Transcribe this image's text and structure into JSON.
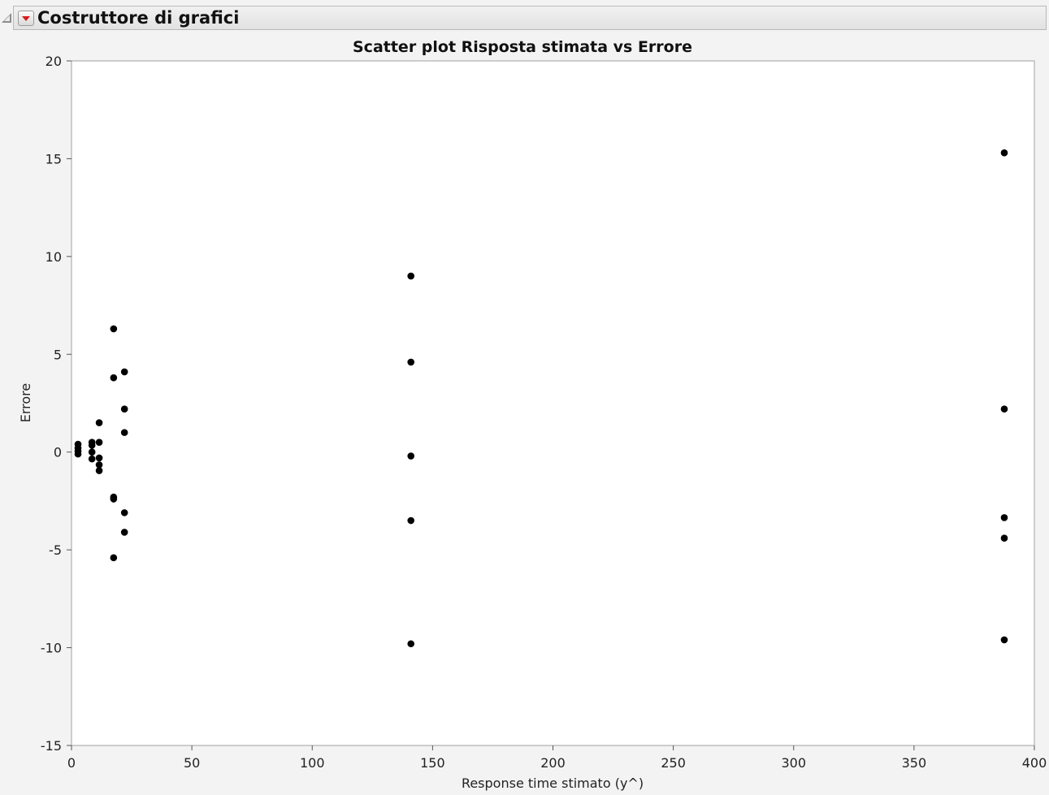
{
  "outline": {
    "title": "Costruttore di grafici"
  },
  "chart_data": {
    "type": "scatter",
    "title": "Scatter plot Risposta stimata vs Errore",
    "xlabel": "Response time stimato (y^)",
    "ylabel": "Errore",
    "xlim": [
      0,
      400
    ],
    "ylim": [
      -15,
      20
    ],
    "xticks": [
      0,
      50,
      100,
      150,
      200,
      250,
      300,
      350,
      400
    ],
    "yticks": [
      -15,
      -10,
      -5,
      0,
      5,
      10,
      15,
      20
    ],
    "grid": false,
    "legend": "none",
    "marker_color": "#000000",
    "points": [
      {
        "x": 2.7,
        "y": 0.4
      },
      {
        "x": 2.7,
        "y": 0.2
      },
      {
        "x": 2.7,
        "y": 0.05
      },
      {
        "x": 2.7,
        "y": -0.1
      },
      {
        "x": 8.5,
        "y": 0.5
      },
      {
        "x": 8.5,
        "y": 0.35
      },
      {
        "x": 8.5,
        "y": 0.0
      },
      {
        "x": 8.5,
        "y": -0.35
      },
      {
        "x": 11.5,
        "y": 1.5
      },
      {
        "x": 11.5,
        "y": 0.5
      },
      {
        "x": 11.5,
        "y": -0.3
      },
      {
        "x": 11.5,
        "y": -0.65
      },
      {
        "x": 11.5,
        "y": -0.95
      },
      {
        "x": 17.5,
        "y": 6.3
      },
      {
        "x": 17.5,
        "y": 3.8
      },
      {
        "x": 17.5,
        "y": -2.3
      },
      {
        "x": 17.5,
        "y": -2.4
      },
      {
        "x": 17.5,
        "y": -5.4
      },
      {
        "x": 22.0,
        "y": 4.1
      },
      {
        "x": 22.0,
        "y": 2.2
      },
      {
        "x": 22.0,
        "y": 1.0
      },
      {
        "x": 22.0,
        "y": -3.1
      },
      {
        "x": 22.0,
        "y": -4.1
      },
      {
        "x": 141.0,
        "y": 9.0
      },
      {
        "x": 141.0,
        "y": 4.6
      },
      {
        "x": 141.0,
        "y": -0.2
      },
      {
        "x": 141.0,
        "y": -3.5
      },
      {
        "x": 141.0,
        "y": -9.8
      },
      {
        "x": 387.5,
        "y": 15.3
      },
      {
        "x": 387.5,
        "y": 2.2
      },
      {
        "x": 387.5,
        "y": -3.35
      },
      {
        "x": 387.5,
        "y": -4.4
      },
      {
        "x": 387.5,
        "y": -9.6
      }
    ]
  }
}
